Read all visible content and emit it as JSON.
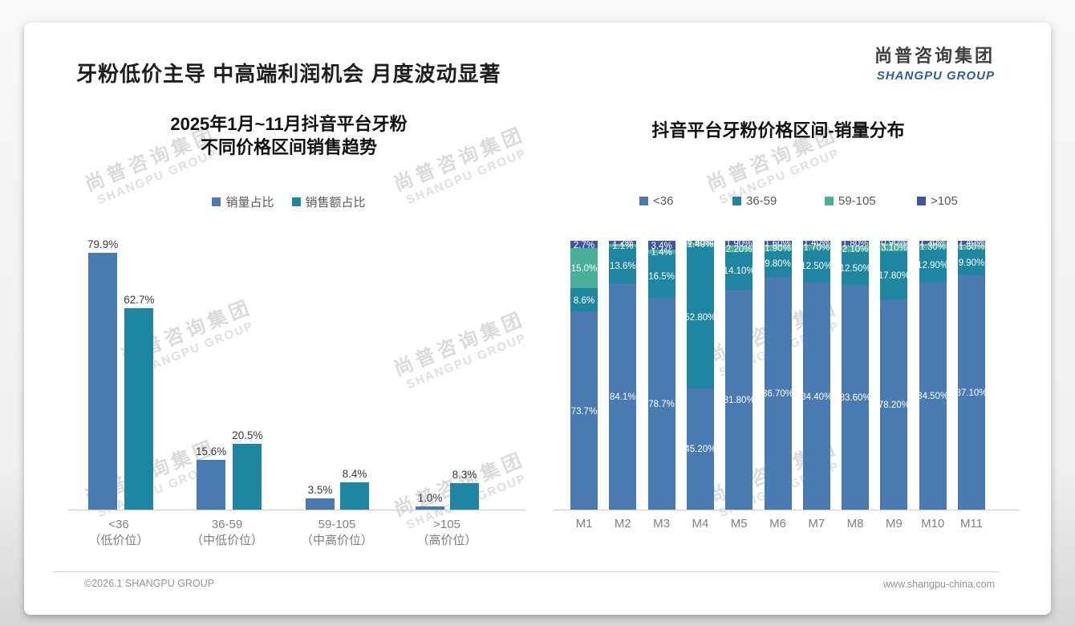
{
  "slide": {
    "title": "牙粉低价主导 中高端利润机会 月度波动显著",
    "logo": {
      "cn": "尚普咨询集团",
      "en": "SHANGPU GROUP"
    },
    "watermark": {
      "cn": "尚普咨询集团",
      "en": "SHANGPU GROUP"
    },
    "footer": {
      "left": "©2026.1 SHANGPU GROUP",
      "right": "www.shangpu-china.com"
    }
  },
  "colors": {
    "blue": "#4a7ab2",
    "teal": "#1e86a0",
    "green": "#48b098",
    "indigo": "#3e56a6"
  },
  "chart_data": [
    {
      "type": "bar",
      "title_lines": [
        "2025年1月~11月抖音平台牙粉",
        "不同价格区间销售趋势"
      ],
      "categories": [
        [
          "<36",
          "（低价位）"
        ],
        [
          "36-59",
          "（中低价位）"
        ],
        [
          "59-105",
          "（中高价位）"
        ],
        [
          ">105",
          "（高价位）"
        ]
      ],
      "series": [
        {
          "name": "销量占比",
          "color_key": "blue",
          "values": [
            79.9,
            15.6,
            3.5,
            1.0
          ],
          "labels": [
            "79.9%",
            "15.6%",
            "3.5%",
            "1.0%"
          ]
        },
        {
          "name": "销售额占比",
          "color_key": "teal",
          "values": [
            62.7,
            20.5,
            8.4,
            8.3
          ],
          "labels": [
            "62.7%",
            "20.5%",
            "8.4%",
            "8.3%"
          ]
        }
      ],
      "ylim": [
        0,
        100
      ],
      "grid": false,
      "legend_position": "top",
      "value_labels": "outside-top"
    },
    {
      "type": "stacked-bar-100",
      "title": "抖音平台牙粉价格区间-销量分布",
      "categories": [
        "M1",
        "M2",
        "M3",
        "M4",
        "M5",
        "M6",
        "M7",
        "M8",
        "M9",
        "M10",
        "M11"
      ],
      "series": [
        {
          "name": "<36",
          "color_key": "blue",
          "values": [
            73.7,
            84.1,
            78.7,
            45.2,
            81.8,
            86.7,
            84.4,
            83.6,
            78.2,
            84.5,
            87.1
          ],
          "labels": [
            "73.7%",
            "84.1%",
            "78.7%",
            "45.20%",
            "81.80%",
            "86.70%",
            "84.40%",
            "83.60%",
            "78.20%",
            "84.50%",
            "87.10%"
          ]
        },
        {
          "name": "36-59",
          "color_key": "teal",
          "values": [
            8.6,
            13.6,
            16.5,
            52.8,
            14.1,
            9.8,
            12.5,
            12.5,
            17.8,
            12.9,
            9.9
          ],
          "labels": [
            "8.6%",
            "13.6%",
            "16.5%",
            "52.80%",
            "14.10%",
            "9.80%",
            "12.50%",
            "12.50%",
            "17.80%",
            "12.90%",
            "9.90%"
          ]
        },
        {
          "name": "59-105",
          "color_key": "green",
          "values": [
            15.0,
            1.1,
            1.4,
            1.4,
            2.2,
            1.9,
            1.7,
            2.1,
            3.1,
            1.3,
            1.6
          ],
          "labels": [
            "15.0%",
            "1.1%",
            "1.4%",
            "1.40%",
            "2.20%",
            "1.90%",
            "1.70%",
            "2.10%",
            "3.10%",
            "1.30%",
            "1.60%"
          ]
        },
        {
          "name": ">105",
          "color_key": "indigo",
          "values": [
            2.7,
            1.2,
            3.4,
            0.6,
            1.9,
            1.6,
            1.4,
            1.8,
            0.9,
            1.3,
            1.4
          ],
          "labels": [
            "2.7%",
            "1.2%",
            "3.4%",
            "0.60%",
            "1.90%",
            "1.60%",
            "1.40%",
            "1.80%",
            "0.90%",
            "1.30%",
            "1.40%"
          ]
        }
      ],
      "ylim": [
        0,
        100
      ],
      "grid": false,
      "legend_position": "top",
      "value_labels": "inside-white"
    }
  ]
}
